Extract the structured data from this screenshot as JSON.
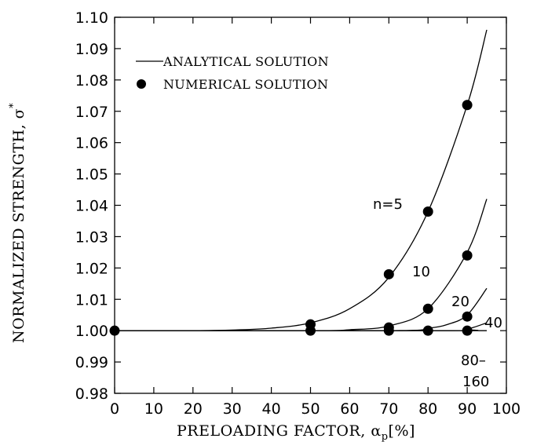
{
  "chart_data": {
    "type": "line",
    "xlabel": "PRELOADING FACTOR, α",
    "xlabel_sub": "p",
    "xlabel_unit": "[%]",
    "ylabel": "NORMALIZED STRENGTH, σ",
    "ylabel_sup": "*",
    "xlim": [
      0,
      100
    ],
    "ylim": [
      0.98,
      1.1
    ],
    "xticks": [
      0,
      10,
      20,
      30,
      40,
      50,
      60,
      70,
      80,
      90,
      100
    ],
    "yticks": [
      "0.98",
      "0.99",
      "1.00",
      "1.01",
      "1.02",
      "1.03",
      "1.04",
      "1.05",
      "1.06",
      "1.07",
      "1.08",
      "1.09",
      "1.10"
    ],
    "grid": false,
    "legend": {
      "position": "top-left",
      "entries": [
        {
          "label": "ANALYTICAL SOLUTION",
          "marker": "line"
        },
        {
          "label": "NUMERICAL SOLUTION",
          "marker": "filled-circle"
        }
      ]
    },
    "series": [
      {
        "name": "n=5",
        "analytical": [
          [
            0,
            1.0
          ],
          [
            20,
            1.0
          ],
          [
            30,
            1.0002
          ],
          [
            40,
            1.0008
          ],
          [
            50,
            1.0025
          ],
          [
            60,
            1.007
          ],
          [
            70,
            1.017
          ],
          [
            80,
            1.038
          ],
          [
            90,
            1.072
          ],
          [
            95,
            1.096
          ]
        ],
        "numerical": [
          [
            0,
            1.0
          ],
          [
            50,
            1.002
          ],
          [
            70,
            1.018
          ],
          [
            80,
            1.038
          ],
          [
            90,
            1.072
          ]
        ]
      },
      {
        "name": "10",
        "analytical": [
          [
            0,
            1.0
          ],
          [
            50,
            1.0
          ],
          [
            60,
            1.0003
          ],
          [
            70,
            1.0015
          ],
          [
            80,
            1.007
          ],
          [
            90,
            1.025
          ],
          [
            95,
            1.042
          ]
        ],
        "numerical": [
          [
            50,
            1.0
          ],
          [
            70,
            1.001
          ],
          [
            80,
            1.007
          ],
          [
            90,
            1.024
          ]
        ]
      },
      {
        "name": "20",
        "analytical": [
          [
            0,
            1.0
          ],
          [
            70,
            1.0
          ],
          [
            80,
            1.0008
          ],
          [
            85,
            1.002
          ],
          [
            90,
            1.005
          ],
          [
            95,
            1.0135
          ]
        ],
        "numerical": [
          [
            70,
            1.0
          ],
          [
            80,
            1.0
          ],
          [
            90,
            1.0045
          ]
        ]
      },
      {
        "name": "40",
        "analytical": [
          [
            0,
            1.0
          ],
          [
            85,
            1.0
          ],
          [
            90,
            1.0005
          ],
          [
            95,
            1.0025
          ]
        ],
        "numerical": [
          [
            90,
            1.0
          ]
        ]
      },
      {
        "name": "80–160",
        "analytical": [
          [
            0,
            1.0
          ],
          [
            95,
            1.0
          ]
        ],
        "numerical": []
      }
    ],
    "annotations": [
      "n=5",
      "10",
      "20",
      "40",
      "80–",
      "160"
    ]
  }
}
